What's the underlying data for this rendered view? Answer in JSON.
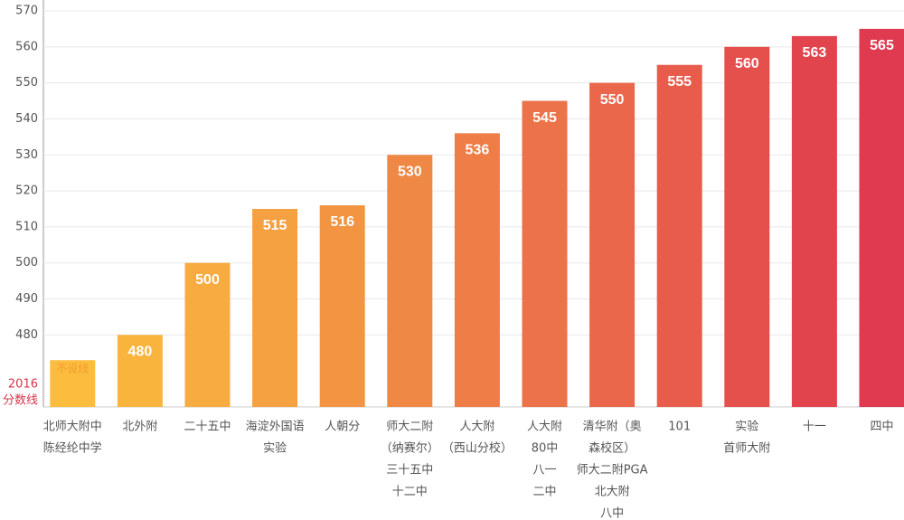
{
  "chart_data": {
    "type": "bar",
    "ylabel_lines": [
      "2016",
      "分数线"
    ],
    "categories": [
      [
        "北师大附中",
        "陈经纶中学"
      ],
      [
        "北外附"
      ],
      [
        "二十五中"
      ],
      [
        "海淀外国语",
        "实验"
      ],
      [
        "人朝分"
      ],
      [
        "师大二附",
        "（纳赛尔）",
        "三十五中",
        "十二中"
      ],
      [
        "人大附",
        "（西山分校）"
      ],
      [
        "人大附",
        "80中",
        "八一",
        "二中"
      ],
      [
        "清华附（奥",
        "森校区）",
        "师大二附PGA",
        "北大附",
        "八中"
      ],
      [
        "101"
      ],
      [
        "实验",
        "首师大附"
      ],
      [
        "十一"
      ],
      [
        "四中"
      ]
    ],
    "values": [
      473,
      480,
      500,
      515,
      516,
      530,
      536,
      545,
      550,
      555,
      560,
      563,
      565
    ],
    "value_labels": [
      "不设线",
      "480",
      "500",
      "515",
      "516",
      "530",
      "536",
      "545",
      "550",
      "555",
      "560",
      "563",
      "565"
    ],
    "colors": [
      "#fcbd3f",
      "#f9b43e",
      "#f7ab40",
      "#f5a041",
      "#f29442",
      "#f08845",
      "#ee7d47",
      "#ec7249",
      "#ea674b",
      "#e85c4c",
      "#e5504d",
      "#e2444e",
      "#df3a50"
    ],
    "ylim": [
      460,
      570
    ],
    "yticks": [
      480,
      490,
      500,
      510,
      520,
      530,
      540,
      550,
      560,
      570
    ],
    "grid": true
  }
}
